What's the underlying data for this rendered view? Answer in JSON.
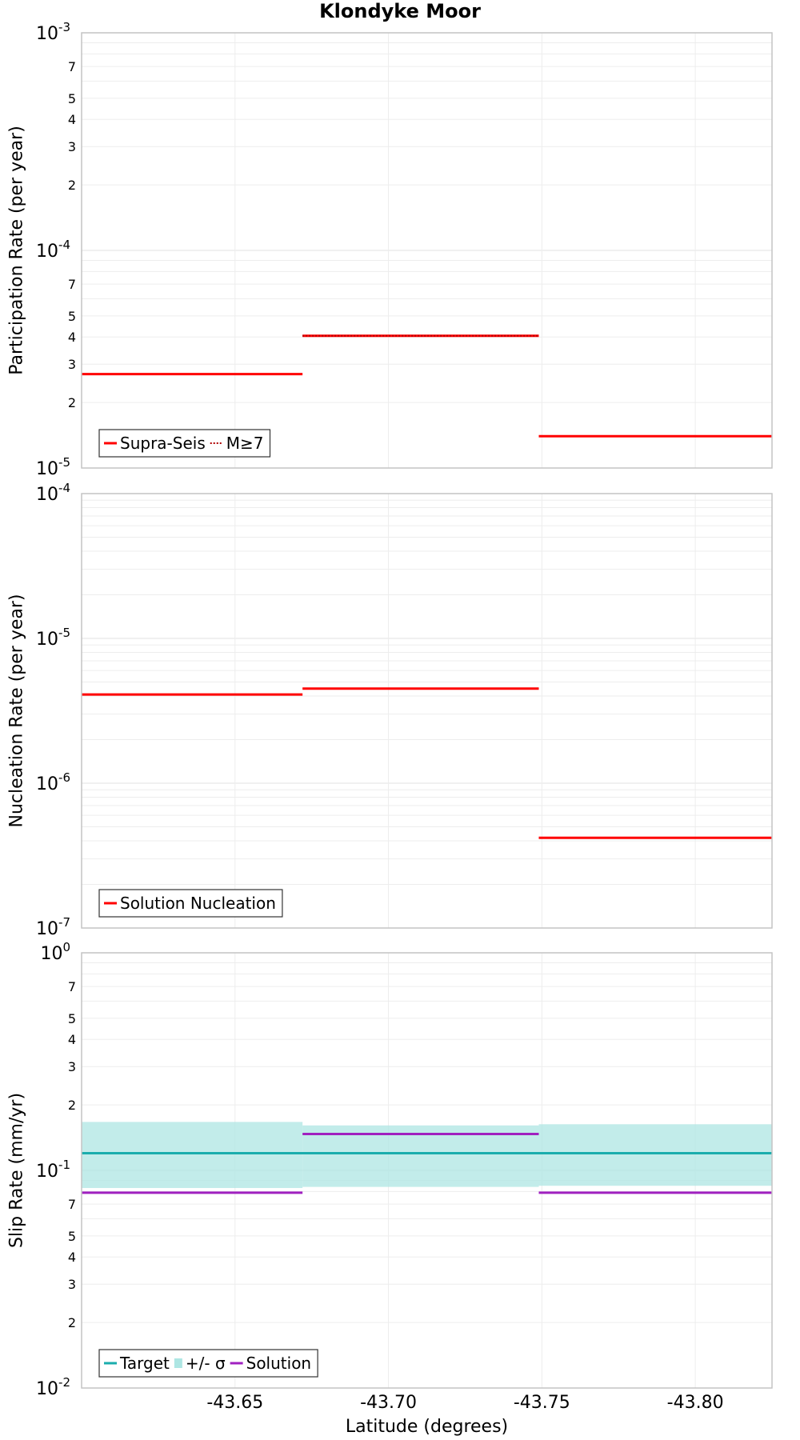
{
  "title": "Klondyke Moor",
  "chart_data": [
    {
      "type": "line",
      "subtype": "step",
      "ylabel": "Participation Rate (per year)",
      "yscale": "log",
      "ylim": [
        1e-05,
        0.001
      ],
      "xlim": [
        -43.6,
        -43.825
      ],
      "series": [
        {
          "name": "Supra-Seis",
          "color": "#ff0000",
          "style": "solid",
          "segments": [
            {
              "x_start": -43.6,
              "x_end": -43.672,
              "value": 2.7e-05
            },
            {
              "x_start": -43.672,
              "x_end": -43.749,
              "value": 4.05e-05
            },
            {
              "x_start": -43.749,
              "x_end": -43.825,
              "value": 1.4e-05
            }
          ]
        },
        {
          "name": "M≥7",
          "color": "#ff0000",
          "style": "dotted",
          "segments": [
            {
              "x_start": -43.672,
              "x_end": -43.749,
              "value": 4.05e-05
            }
          ]
        }
      ],
      "legend": [
        {
          "label": "Supra-Seis",
          "style": "solid",
          "color": "#ff0000"
        },
        {
          "label": "M≥7",
          "style": "dotted",
          "color": "#ff0000"
        }
      ],
      "legend_position": "bottom-left"
    },
    {
      "type": "line",
      "subtype": "step",
      "ylabel": "Nucleation Rate (per year)",
      "yscale": "log",
      "ylim": [
        1e-07,
        0.0001
      ],
      "xlim": [
        -43.6,
        -43.825
      ],
      "series": [
        {
          "name": "Solution Nucleation",
          "color": "#ff0000",
          "style": "solid",
          "segments": [
            {
              "x_start": -43.6,
              "x_end": -43.672,
              "value": 4.1e-06
            },
            {
              "x_start": -43.672,
              "x_end": -43.749,
              "value": 4.5e-06
            },
            {
              "x_start": -43.749,
              "x_end": -43.825,
              "value": 4.2e-07
            }
          ]
        }
      ],
      "legend": [
        {
          "label": "Solution Nucleation",
          "style": "solid",
          "color": "#ff0000"
        }
      ],
      "legend_position": "bottom-left"
    },
    {
      "type": "line",
      "subtype": "step",
      "ylabel": "Slip Rate (mm/yr)",
      "xlabel": "Latitude (degrees)",
      "yscale": "log",
      "ylim": [
        0.01,
        1
      ],
      "xlim": [
        -43.6,
        -43.825
      ],
      "xticks": [
        "-43.65",
        "-43.70",
        "-43.75",
        "-43.80"
      ],
      "xtick_values": [
        -43.65,
        -43.7,
        -43.75,
        -43.8
      ],
      "series": [
        {
          "name": "Target",
          "color": "#1aadad",
          "style": "solid",
          "segments": [
            {
              "x_start": -43.6,
              "x_end": -43.825,
              "value": 0.12
            }
          ]
        },
        {
          "name": "+/- σ",
          "color": "#aee6e3",
          "style": "band",
          "segments": [
            {
              "x_start": -43.6,
              "x_end": -43.672,
              "low": 0.083,
              "high": 0.167
            },
            {
              "x_start": -43.672,
              "x_end": -43.749,
              "low": 0.084,
              "high": 0.161
            },
            {
              "x_start": -43.749,
              "x_end": -43.825,
              "low": 0.085,
              "high": 0.163
            }
          ]
        },
        {
          "name": "Solution",
          "color": "#a020c0",
          "style": "solid",
          "segments": [
            {
              "x_start": -43.6,
              "x_end": -43.672,
              "value": 0.079
            },
            {
              "x_start": -43.672,
              "x_end": -43.749,
              "value": 0.147
            },
            {
              "x_start": -43.749,
              "x_end": -43.825,
              "value": 0.079
            }
          ]
        }
      ],
      "legend": [
        {
          "label": "Target",
          "style": "solid",
          "color": "#1aadad"
        },
        {
          "label": "+/- σ",
          "style": "band",
          "color": "#aee6e3"
        },
        {
          "label": "Solution",
          "style": "solid",
          "color": "#a020c0"
        }
      ],
      "legend_position": "bottom-left"
    }
  ]
}
